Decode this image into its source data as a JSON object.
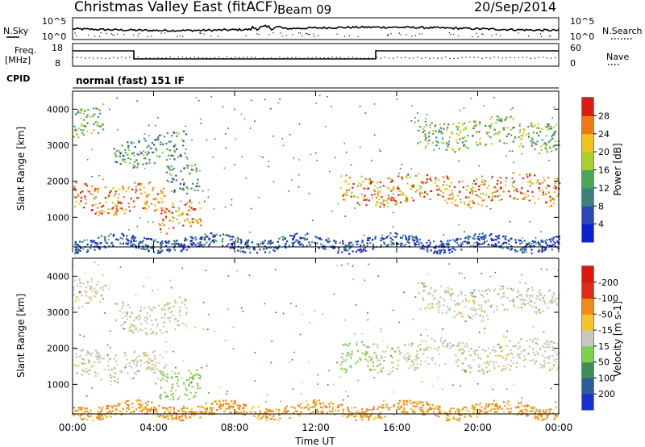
{
  "header": {
    "title": "Christmas Valley East (fitACF)",
    "beam": "Beam 09",
    "date": "20/Sep/2014"
  },
  "strip_panels": {
    "nsky_label": "N.Sky",
    "nsky_ticks": [
      "10^5",
      "10^0"
    ],
    "nsearch_label": "N.Search",
    "nsearch_ticks": [
      "10^5",
      "10^0"
    ],
    "freq_label_1": "Freq.",
    "freq_label_2": "[MHz]",
    "freq_ticks": [
      "18",
      "8"
    ],
    "nave_label": "Nave",
    "nave_ticks": [
      "60",
      "0"
    ],
    "cpid_label": "CPID",
    "cpid_text": "normal (fast) 151 IF"
  },
  "chart_data": [
    {
      "type": "heatmap",
      "panel": "power",
      "ylabel": "Slant Range [km]",
      "y_ticks": [
        "1000",
        "2000",
        "3000",
        "4000"
      ],
      "ylim": [
        180,
        4500
      ],
      "xlim_hours": [
        0,
        24
      ],
      "colorbar_label": "Power [dB]",
      "colorbar_ticks": [
        "4",
        "8",
        "12",
        "16",
        "20",
        "24",
        "28"
      ],
      "colorbar_colors": [
        "#0a1fd6",
        "#2d46b8",
        "#3b7f7f",
        "#48a85a",
        "#a8d02a",
        "#f2c21a",
        "#f07a10",
        "#e01a10"
      ],
      "features": [
        {
          "time_start": 0.0,
          "time_end": 2.2,
          "range_km": 1550,
          "level_db": 26
        },
        {
          "time_start": 2.0,
          "time_end": 4.6,
          "range_km": 1500,
          "level_db": 24
        },
        {
          "time_start": 4.6,
          "time_end": 6.2,
          "range_km": 2150,
          "level_db": 12
        },
        {
          "time_start": 4.2,
          "time_end": 6.3,
          "range_km": 1080,
          "level_db": 24
        },
        {
          "time_start": 0.0,
          "time_end": 1.5,
          "range_km": 3650,
          "level_db": 16
        },
        {
          "time_start": 2.0,
          "time_end": 5.6,
          "range_km": 2900,
          "level_db": 12
        },
        {
          "time_start": 13.2,
          "time_end": 15.0,
          "range_km": 1700,
          "level_db": 24
        },
        {
          "time_start": 15.0,
          "time_end": 24.0,
          "range_km": 1800,
          "level_db": 24
        },
        {
          "time_start": 17.0,
          "time_end": 24.0,
          "range_km": 3350,
          "level_db": 16
        },
        {
          "time_start": 0.0,
          "time_end": 24.0,
          "range_km": 300,
          "level_db": 6
        }
      ]
    },
    {
      "type": "heatmap",
      "panel": "velocity",
      "ylabel": "Slant Range [km]",
      "y_ticks": [
        "1000",
        "2000",
        "3000",
        "4000"
      ],
      "ylim": [
        180,
        4500
      ],
      "xlim_hours": [
        0,
        24
      ],
      "xlabel": "Time UT",
      "x_ticks": [
        "00:00",
        "04:00",
        "08:00",
        "12:00",
        "16:00",
        "20:00",
        "00:00"
      ],
      "colorbar_label": "Velocity [m s-1]",
      "colorbar_ticks": [
        "200",
        "100",
        "50",
        "15",
        "-15",
        "-50",
        "-100",
        "-200"
      ],
      "colorbar_colors": [
        "#1c2fd4",
        "#2a5c9e",
        "#3d8d5c",
        "#7fd04a",
        "#c8c8c0",
        "#f5c42a",
        "#f08a18",
        "#e02a14",
        "#e01410"
      ],
      "features": [
        {
          "time_start": 0.0,
          "time_end": 2.2,
          "range_km": 1600,
          "velocity_ms": 0
        },
        {
          "time_start": 2.0,
          "time_end": 4.6,
          "range_km": 1500,
          "velocity_ms": 0
        },
        {
          "time_start": 4.2,
          "time_end": 6.3,
          "range_km": 1080,
          "velocity_ms": 30
        },
        {
          "time_start": 0.0,
          "time_end": 1.5,
          "range_km": 3650,
          "velocity_ms": 0
        },
        {
          "time_start": 2.0,
          "time_end": 5.6,
          "range_km": 2900,
          "velocity_ms": 0
        },
        {
          "time_start": 13.2,
          "time_end": 15.0,
          "range_km": 1700,
          "velocity_ms": 30
        },
        {
          "time_start": 15.0,
          "time_end": 24.0,
          "range_km": 1800,
          "velocity_ms": 0
        },
        {
          "time_start": 17.0,
          "time_end": 24.0,
          "range_km": 3350,
          "velocity_ms": 0
        },
        {
          "time_start": 0.0,
          "time_end": 24.0,
          "range_km": 300,
          "velocity_ms": -60
        }
      ]
    }
  ]
}
